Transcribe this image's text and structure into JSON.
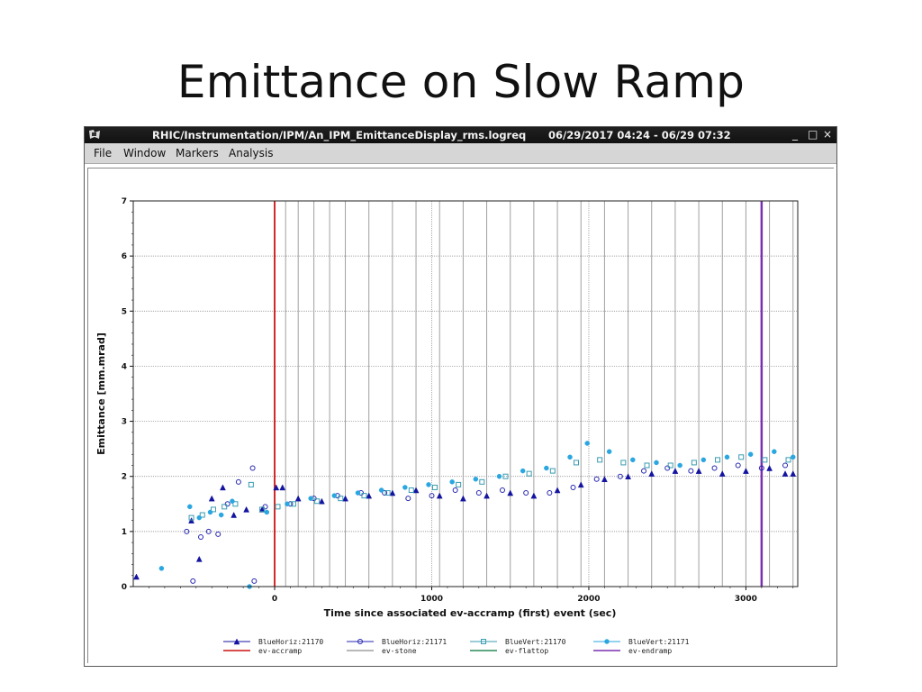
{
  "slide": {
    "title": "Emittance on Slow Ramp"
  },
  "window": {
    "title": "RHIC/Instrumentation/IPM/An_IPM_EmittanceDisplay_rms.logreq",
    "time_range": "06/29/2017 04:24 - 06/29 07:32",
    "controls": {
      "minimize": "_",
      "maximize": "□",
      "close": "×"
    }
  },
  "menu": {
    "file": "File",
    "window": "Window",
    "markers": "Markers",
    "analysis": "Analysis"
  },
  "colors": {
    "blue_horiz_21170": "#1414a0",
    "blue_horiz_21171": "#2424b0",
    "blue_vert_21170": "#3a9cb0",
    "blue_vert_21171": "#2aa6e0",
    "ev_accramp": "#cc1111",
    "ev_stone": "#a0a0a0",
    "ev_flattop": "#2a8a5a",
    "ev_endramp": "#7a30b0"
  },
  "chart_data": {
    "type": "scatter",
    "xlabel": "Time since associated ev-accramp (first) event (sec)",
    "ylabel": "Emittance [mm.mrad]",
    "xlim": [
      -900,
      3330
    ],
    "ylim": [
      0,
      7
    ],
    "x_ticks": [
      "0",
      "1000",
      "2000",
      "3000"
    ],
    "y_ticks": [
      "0",
      "1",
      "2",
      "3",
      "4",
      "5",
      "6",
      "7"
    ],
    "grid": true,
    "legend_position": "bottom",
    "markers": [
      {
        "name": "ev-accramp",
        "x": 0
      },
      {
        "name": "ev-endramp",
        "x": 3100
      }
    ],
    "stone_events": [
      70,
      150,
      250,
      350,
      450,
      600,
      750,
      900,
      1050,
      1200,
      1350,
      1500,
      1650,
      1800,
      1950,
      2100,
      2250,
      2400,
      2550,
      2700,
      2850,
      3000,
      3150,
      3300
    ],
    "series": [
      {
        "name": "BlueHoriz:21170",
        "marker": "triangle-filled",
        "points": [
          [
            -880,
            0.18
          ],
          [
            -530,
            1.2
          ],
          [
            -480,
            0.5
          ],
          [
            -400,
            1.6
          ],
          [
            -330,
            1.8
          ],
          [
            -260,
            1.3
          ],
          [
            -180,
            1.4
          ],
          [
            -80,
            1.4
          ],
          [
            10,
            1.8
          ],
          [
            50,
            1.8
          ],
          [
            150,
            1.6
          ],
          [
            300,
            1.55
          ],
          [
            450,
            1.6
          ],
          [
            600,
            1.65
          ],
          [
            750,
            1.7
          ],
          [
            900,
            1.75
          ],
          [
            1050,
            1.65
          ],
          [
            1200,
            1.6
          ],
          [
            1350,
            1.65
          ],
          [
            1500,
            1.7
          ],
          [
            1650,
            1.65
          ],
          [
            1800,
            1.75
          ],
          [
            1950,
            1.85
          ],
          [
            2100,
            1.95
          ],
          [
            2250,
            2.0
          ],
          [
            2400,
            2.05
          ],
          [
            2550,
            2.1
          ],
          [
            2700,
            2.1
          ],
          [
            2850,
            2.05
          ],
          [
            3000,
            2.1
          ],
          [
            3150,
            2.15
          ],
          [
            3250,
            2.05
          ],
          [
            3300,
            2.05
          ]
        ]
      },
      {
        "name": "BlueHoriz:21171",
        "marker": "circle-open",
        "points": [
          [
            -560,
            1.0
          ],
          [
            -520,
            0.1
          ],
          [
            -470,
            0.9
          ],
          [
            -420,
            1.0
          ],
          [
            -360,
            0.95
          ],
          [
            -300,
            1.5
          ],
          [
            -230,
            1.9
          ],
          [
            -140,
            2.15
          ],
          [
            -130,
            0.1
          ],
          [
            -60,
            1.45
          ],
          [
            100,
            1.5
          ],
          [
            250,
            1.6
          ],
          [
            400,
            1.65
          ],
          [
            550,
            1.7
          ],
          [
            700,
            1.7
          ],
          [
            850,
            1.6
          ],
          [
            1000,
            1.65
          ],
          [
            1150,
            1.75
          ],
          [
            1300,
            1.7
          ],
          [
            1450,
            1.75
          ],
          [
            1600,
            1.7
          ],
          [
            1750,
            1.7
          ],
          [
            1900,
            1.8
          ],
          [
            2050,
            1.95
          ],
          [
            2200,
            2.0
          ],
          [
            2350,
            2.1
          ],
          [
            2500,
            2.15
          ],
          [
            2650,
            2.1
          ],
          [
            2800,
            2.15
          ],
          [
            2950,
            2.2
          ],
          [
            3100,
            2.15
          ],
          [
            3250,
            2.2
          ]
        ]
      },
      {
        "name": "BlueVert:21170",
        "marker": "square-open",
        "points": [
          [
            -530,
            1.25
          ],
          [
            -460,
            1.3
          ],
          [
            -390,
            1.4
          ],
          [
            -320,
            1.45
          ],
          [
            -250,
            1.5
          ],
          [
            -150,
            1.85
          ],
          [
            -80,
            1.4
          ],
          [
            20,
            1.45
          ],
          [
            120,
            1.5
          ],
          [
            270,
            1.55
          ],
          [
            420,
            1.6
          ],
          [
            570,
            1.65
          ],
          [
            720,
            1.7
          ],
          [
            870,
            1.75
          ],
          [
            1020,
            1.8
          ],
          [
            1170,
            1.85
          ],
          [
            1320,
            1.9
          ],
          [
            1470,
            2.0
          ],
          [
            1620,
            2.05
          ],
          [
            1770,
            2.1
          ],
          [
            1920,
            2.25
          ],
          [
            2070,
            2.3
          ],
          [
            2220,
            2.25
          ],
          [
            2370,
            2.2
          ],
          [
            2520,
            2.2
          ],
          [
            2670,
            2.25
          ],
          [
            2820,
            2.3
          ],
          [
            2970,
            2.35
          ],
          [
            3120,
            2.3
          ],
          [
            3270,
            2.3
          ]
        ]
      },
      {
        "name": "BlueVert:21171",
        "marker": "circle-filled",
        "points": [
          [
            -720,
            0.33
          ],
          [
            -540,
            1.45
          ],
          [
            -480,
            1.25
          ],
          [
            -410,
            1.35
          ],
          [
            -340,
            1.3
          ],
          [
            -270,
            1.55
          ],
          [
            -160,
            0.0
          ],
          [
            -50,
            1.35
          ],
          [
            80,
            1.5
          ],
          [
            230,
            1.6
          ],
          [
            380,
            1.65
          ],
          [
            530,
            1.7
          ],
          [
            680,
            1.75
          ],
          [
            830,
            1.8
          ],
          [
            980,
            1.85
          ],
          [
            1130,
            1.9
          ],
          [
            1280,
            1.95
          ],
          [
            1430,
            2.0
          ],
          [
            1580,
            2.1
          ],
          [
            1730,
            2.15
          ],
          [
            1880,
            2.35
          ],
          [
            1990,
            2.6
          ],
          [
            2130,
            2.45
          ],
          [
            2280,
            2.3
          ],
          [
            2430,
            2.25
          ],
          [
            2580,
            2.2
          ],
          [
            2730,
            2.3
          ],
          [
            2880,
            2.35
          ],
          [
            3030,
            2.4
          ],
          [
            3180,
            2.45
          ],
          [
            3300,
            2.35
          ]
        ]
      }
    ],
    "legend": [
      {
        "label": "BlueHoriz:21170",
        "swatch": "triangle-filled",
        "color_key": "blue_horiz_21170"
      },
      {
        "label": "BlueHoriz:21171",
        "swatch": "circle-open",
        "color_key": "blue_horiz_21171"
      },
      {
        "label": "BlueVert:21170",
        "swatch": "square-open",
        "color_key": "blue_vert_21170"
      },
      {
        "label": "BlueVert:21171",
        "swatch": "circle-filled",
        "color_key": "blue_vert_21171"
      },
      {
        "label": "ev-accramp",
        "swatch": "line",
        "color_key": "ev_accramp"
      },
      {
        "label": "ev-stone",
        "swatch": "line",
        "color_key": "ev_stone"
      },
      {
        "label": "ev-flattop",
        "swatch": "line",
        "color_key": "ev_flattop"
      },
      {
        "label": "ev-endramp",
        "swatch": "line",
        "color_key": "ev_endramp"
      }
    ]
  }
}
